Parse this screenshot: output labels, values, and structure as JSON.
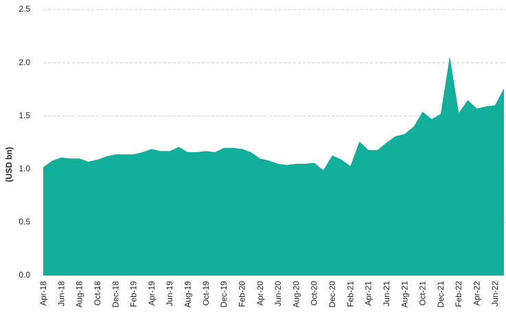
{
  "chart_data": {
    "type": "area",
    "y_label": "(USD bn)",
    "color": "#12b09b",
    "grid": true,
    "categories": [
      "Apr-18",
      null,
      "Jun-18",
      null,
      "Aug-18",
      null,
      "Oct-18",
      null,
      "Dec-18",
      null,
      "Feb-19",
      null,
      "Apr-19",
      null,
      "Jun-19",
      null,
      "Aug-19",
      null,
      "Oct-19",
      null,
      "Dec-19",
      null,
      "Feb-20",
      null,
      "Apr-20",
      null,
      "Jun-20",
      null,
      "Aug-20",
      null,
      "Oct-20",
      null,
      "Dec-20",
      null,
      "Feb-21",
      null,
      "Apr-21",
      null,
      "Jun-21",
      null,
      "Aug-21",
      null,
      "Oct-21",
      null,
      "Dec-21",
      null,
      "Feb-22",
      null,
      "Apr-22",
      null,
      "Jun-22",
      null
    ],
    "values": [
      1.02,
      1.08,
      1.11,
      1.1,
      1.1,
      1.07,
      1.09,
      1.12,
      1.14,
      1.14,
      1.14,
      1.16,
      1.19,
      1.17,
      1.17,
      1.21,
      1.16,
      1.16,
      1.17,
      1.16,
      1.2,
      1.2,
      1.19,
      1.16,
      1.1,
      1.08,
      1.05,
      1.04,
      1.05,
      1.05,
      1.06,
      0.99,
      1.13,
      1.09,
      1.03,
      1.26,
      1.18,
      1.18,
      1.25,
      1.31,
      1.33,
      1.4,
      1.54,
      1.47,
      1.52,
      2.06,
      1.53,
      1.65,
      1.57,
      1.59,
      1.6,
      1.76
    ],
    "ylim": [
      0,
      2.5
    ],
    "yticks": [
      {
        "value": 0,
        "label": "0.0"
      },
      {
        "value": 0.5,
        "label": "0.5"
      },
      {
        "value": 1,
        "label": "1.0"
      },
      {
        "value": 1.5,
        "label": "1.5"
      },
      {
        "value": 2,
        "label": "2.0"
      },
      {
        "value": 2.5,
        "label": "2.5"
      }
    ]
  }
}
